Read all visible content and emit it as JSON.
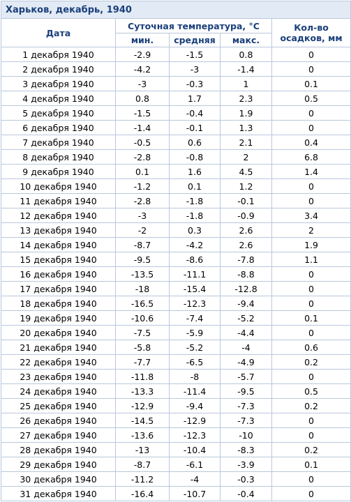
{
  "table": {
    "title": "Харьков, декабрь, 1940",
    "headers": {
      "date": "Дата",
      "temp_group": "Суточная температура, °С",
      "min": "мин.",
      "avg": "средняя",
      "max": "макс.",
      "precip": "Кол-во осадков, мм"
    },
    "rows": [
      {
        "date": "1 декабря 1940",
        "min": "-2.9",
        "avg": "-1.5",
        "max": "0.8",
        "precip": "0"
      },
      {
        "date": "2 декабря 1940",
        "min": "-4.2",
        "avg": "-3",
        "max": "-1.4",
        "precip": "0"
      },
      {
        "date": "3 декабря 1940",
        "min": "-3",
        "avg": "-0.3",
        "max": "1",
        "precip": "0.1"
      },
      {
        "date": "4 декабря 1940",
        "min": "0.8",
        "avg": "1.7",
        "max": "2.3",
        "precip": "0.5"
      },
      {
        "date": "5 декабря 1940",
        "min": "-1.5",
        "avg": "-0.4",
        "max": "1.9",
        "precip": "0"
      },
      {
        "date": "6 декабря 1940",
        "min": "-1.4",
        "avg": "-0.1",
        "max": "1.3",
        "precip": "0"
      },
      {
        "date": "7 декабря 1940",
        "min": "-0.5",
        "avg": "0.6",
        "max": "2.1",
        "precip": "0.4"
      },
      {
        "date": "8 декабря 1940",
        "min": "-2.8",
        "avg": "-0.8",
        "max": "2",
        "precip": "6.8"
      },
      {
        "date": "9 декабря 1940",
        "min": "0.1",
        "avg": "1.6",
        "max": "4.5",
        "precip": "1.4"
      },
      {
        "date": "10 декабря 1940",
        "min": "-1.2",
        "avg": "0.1",
        "max": "1.2",
        "precip": "0"
      },
      {
        "date": "11 декабря 1940",
        "min": "-2.8",
        "avg": "-1.8",
        "max": "-0.1",
        "precip": "0"
      },
      {
        "date": "12 декабря 1940",
        "min": "-3",
        "avg": "-1.8",
        "max": "-0.9",
        "precip": "3.4"
      },
      {
        "date": "13 декабря 1940",
        "min": "-2",
        "avg": "0.3",
        "max": "2.6",
        "precip": "2"
      },
      {
        "date": "14 декабря 1940",
        "min": "-8.7",
        "avg": "-4.2",
        "max": "2.6",
        "precip": "1.9"
      },
      {
        "date": "15 декабря 1940",
        "min": "-9.5",
        "avg": "-8.6",
        "max": "-7.8",
        "precip": "1.1"
      },
      {
        "date": "16 декабря 1940",
        "min": "-13.5",
        "avg": "-11.1",
        "max": "-8.8",
        "precip": "0"
      },
      {
        "date": "17 декабря 1940",
        "min": "-18",
        "avg": "-15.4",
        "max": "-12.8",
        "precip": "0"
      },
      {
        "date": "18 декабря 1940",
        "min": "-16.5",
        "avg": "-12.3",
        "max": "-9.4",
        "precip": "0"
      },
      {
        "date": "19 декабря 1940",
        "min": "-10.6",
        "avg": "-7.4",
        "max": "-5.2",
        "precip": "0.1"
      },
      {
        "date": "20 декабря 1940",
        "min": "-7.5",
        "avg": "-5.9",
        "max": "-4.4",
        "precip": "0"
      },
      {
        "date": "21 декабря 1940",
        "min": "-5.8",
        "avg": "-5.2",
        "max": "-4",
        "precip": "0.6"
      },
      {
        "date": "22 декабря 1940",
        "min": "-7.7",
        "avg": "-6.5",
        "max": "-4.9",
        "precip": "0.2"
      },
      {
        "date": "23 декабря 1940",
        "min": "-11.8",
        "avg": "-8",
        "max": "-5.7",
        "precip": "0"
      },
      {
        "date": "24 декабря 1940",
        "min": "-13.3",
        "avg": "-11.4",
        "max": "-9.5",
        "precip": "0.5"
      },
      {
        "date": "25 декабря 1940",
        "min": "-12.9",
        "avg": "-9.4",
        "max": "-7.3",
        "precip": "0.2"
      },
      {
        "date": "26 декабря 1940",
        "min": "-14.5",
        "avg": "-12.9",
        "max": "-7.3",
        "precip": "0"
      },
      {
        "date": "27 декабря 1940",
        "min": "-13.6",
        "avg": "-12.3",
        "max": "-10",
        "precip": "0"
      },
      {
        "date": "28 декабря 1940",
        "min": "-13",
        "avg": "-10.4",
        "max": "-8.3",
        "precip": "0.2"
      },
      {
        "date": "29 декабря 1940",
        "min": "-8.7",
        "avg": "-6.1",
        "max": "-3.9",
        "precip": "0.1"
      },
      {
        "date": "30 декабря 1940",
        "min": "-11.2",
        "avg": "-4",
        "max": "-0.3",
        "precip": "0"
      },
      {
        "date": "31 декабря 1940",
        "min": "-16.4",
        "avg": "-10.7",
        "max": "-0.4",
        "precip": "0"
      }
    ]
  }
}
